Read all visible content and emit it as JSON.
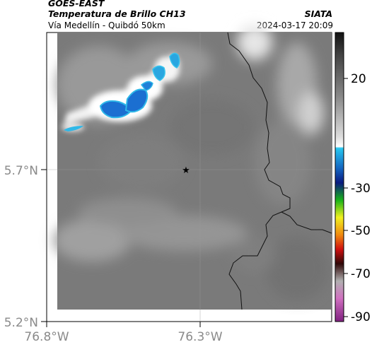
{
  "header": {
    "source": "GOES-EAST",
    "product": "Temperatura de Brillo CH13",
    "organization": "SIATA",
    "subtitle": "Vía Medellín - Quibdó 50km",
    "datetime": "2024-03-17 20:09"
  },
  "axes": {
    "lon_ticks": [
      "76.8°W",
      "76.3°W"
    ],
    "lat_ticks": [
      "5.7°N",
      "5.2°N"
    ],
    "lon_range": [
      -76.8,
      -75.85
    ],
    "lat_range": [
      5.2,
      6.15
    ],
    "grid": true
  },
  "colorbar": {
    "tick_labels": [
      "20",
      "-30",
      "-50",
      "-70",
      "-90"
    ],
    "tick_values": [
      20,
      -30,
      -50,
      -70,
      -90
    ],
    "range": [
      -93,
      43
    ]
  },
  "marker": {
    "icon": "star-marker-icon",
    "lon": -76.35,
    "lat": 5.7
  },
  "colors": {
    "cold_cloud": "#1b6fd1",
    "cloud_edge": "#2fb8e8",
    "background_gray": "#7c7c7c"
  }
}
